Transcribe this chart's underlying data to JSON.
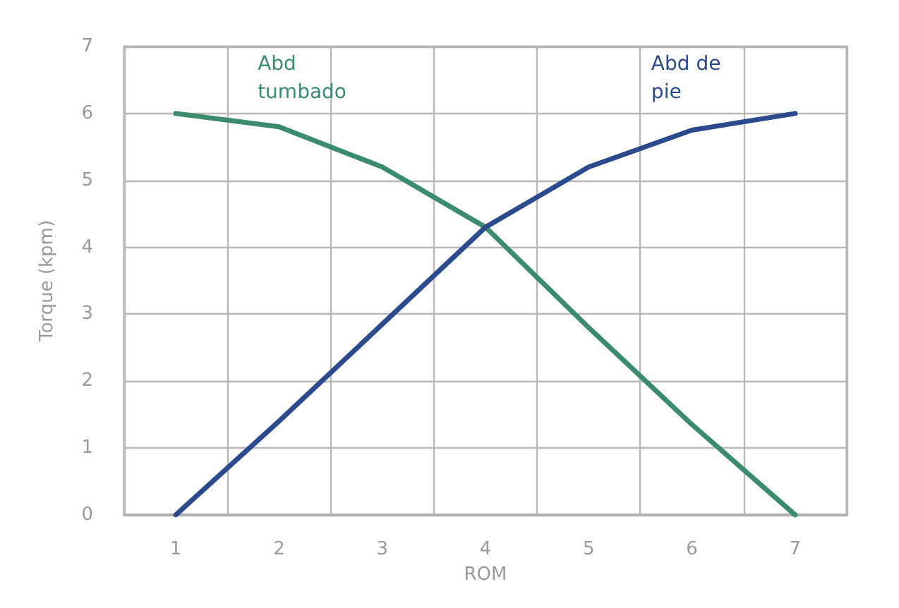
{
  "chart_data": {
    "type": "line",
    "xlabel": "ROM",
    "ylabel": "Torque (kpm)",
    "categories": [
      "1",
      "2",
      "3",
      "4",
      "5",
      "6",
      "7"
    ],
    "series": [
      {
        "name": "Abd tumbado",
        "color": "#3a8c6c",
        "values": [
          6,
          5.8,
          5.2,
          4.3,
          2.8,
          1.35,
          0
        ]
      },
      {
        "name": "Abd de pie",
        "color": "#2c4b8e",
        "values": [
          0,
          1.4,
          2.85,
          4.3,
          5.2,
          5.75,
          6
        ]
      }
    ],
    "ylim": [
      0,
      7
    ],
    "yticks": [
      0,
      1,
      2,
      3,
      4,
      5,
      6,
      7
    ],
    "grid": true,
    "legend": false,
    "marker": "none",
    "line_style": "solid"
  }
}
